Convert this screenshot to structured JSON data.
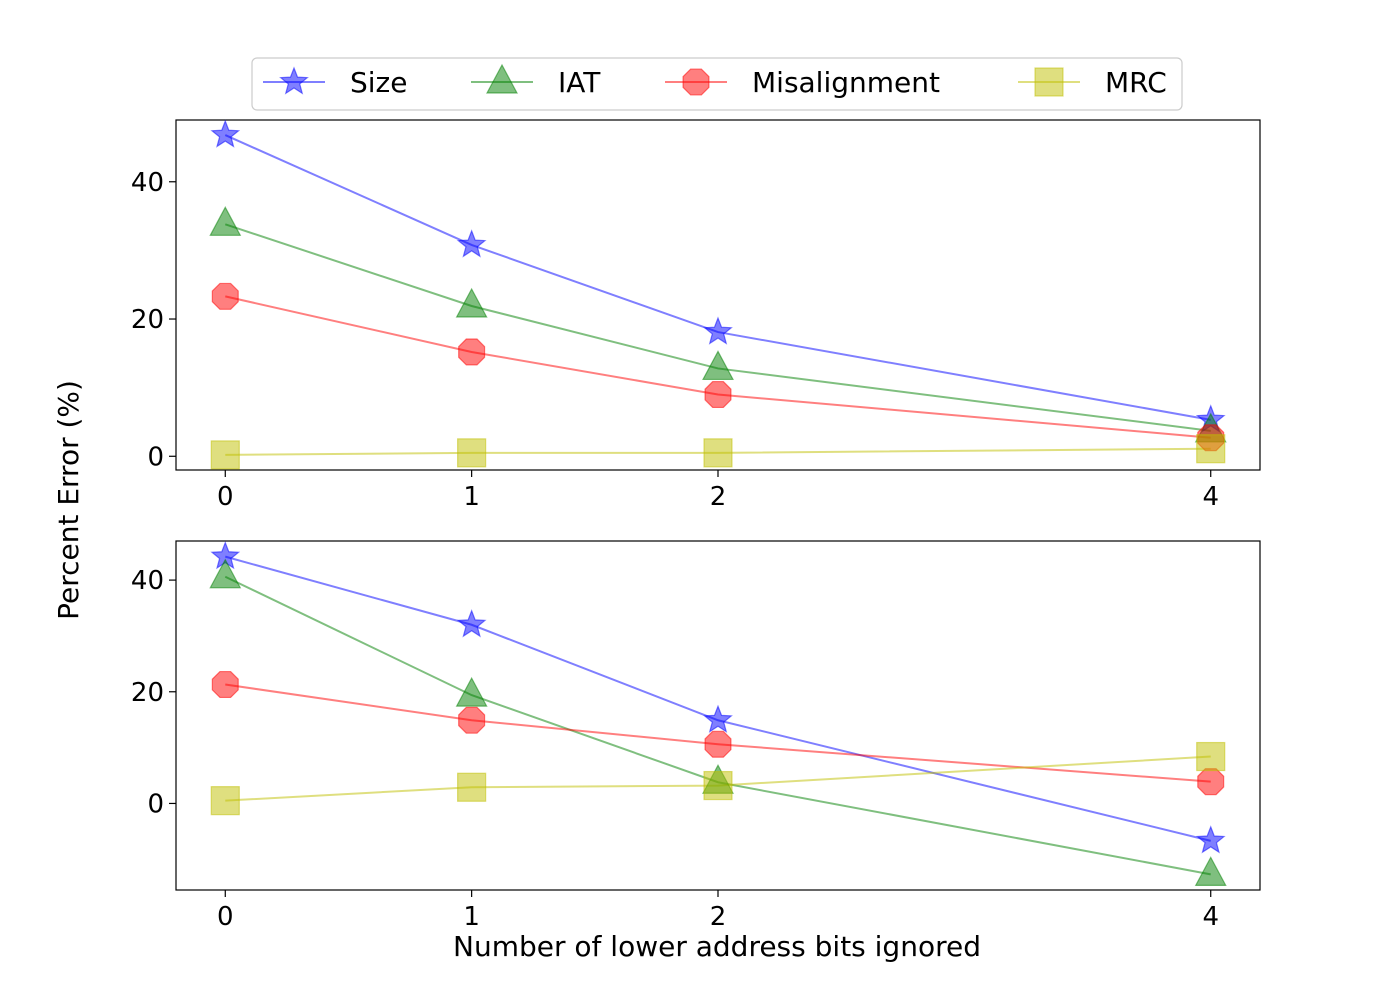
{
  "figure": {
    "ylabel": "Percent Error (%)",
    "xlabel": "Number of lower address bits ignored"
  },
  "legend": {
    "placement": "top-center",
    "entries": [
      {
        "name": "Size",
        "marker": "star",
        "color": "#0000ff"
      },
      {
        "name": "IAT",
        "marker": "triangle",
        "color": "#008000"
      },
      {
        "name": "Misalignment",
        "marker": "octagon",
        "color": "#ff0000"
      },
      {
        "name": "MRC",
        "marker": "square",
        "color": "#bfbf00"
      }
    ]
  },
  "chart_data": [
    {
      "type": "line",
      "x": [
        0,
        1,
        2,
        4
      ],
      "xticks": [
        "0",
        "1",
        "2",
        "4"
      ],
      "yticks": [
        0,
        20,
        40
      ],
      "xlim": [
        -0.2,
        4.2
      ],
      "ylim": [
        -2,
        49
      ],
      "grid": false,
      "series": [
        {
          "name": "Size",
          "values": [
            46.8,
            30.8,
            18.1,
            5.3
          ]
        },
        {
          "name": "IAT",
          "values": [
            33.8,
            21.9,
            12.8,
            3.7
          ]
        },
        {
          "name": "Misalignment",
          "values": [
            23.3,
            15.2,
            9.0,
            2.7
          ]
        },
        {
          "name": "MRC",
          "values": [
            0.2,
            0.5,
            0.5,
            1.1
          ]
        }
      ]
    },
    {
      "type": "line",
      "x": [
        0,
        1,
        2,
        4
      ],
      "xticks": [
        "0",
        "1",
        "2",
        "4"
      ],
      "yticks": [
        0,
        20,
        40
      ],
      "xlim": [
        -0.2,
        4.2
      ],
      "ylim": [
        -15.5,
        47
      ],
      "grid": false,
      "series": [
        {
          "name": "Size",
          "values": [
            44.2,
            32.0,
            14.9,
            -6.7
          ]
        },
        {
          "name": "IAT",
          "values": [
            40.6,
            19.4,
            3.8,
            -12.7
          ]
        },
        {
          "name": "Misalignment",
          "values": [
            21.3,
            14.9,
            10.6,
            3.9
          ]
        },
        {
          "name": "MRC",
          "values": [
            0.5,
            2.9,
            3.2,
            8.4
          ]
        }
      ]
    }
  ]
}
